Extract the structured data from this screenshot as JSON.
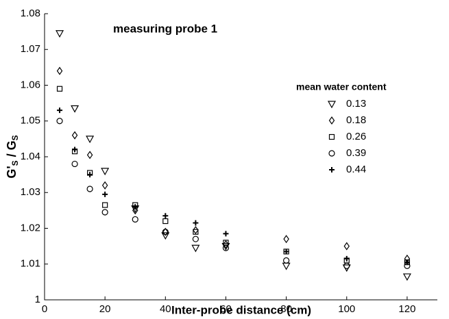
{
  "chart_data": {
    "type": "scatter",
    "annotation": "measuring probe 1",
    "xlabel": "Inter-probe distance (cm)",
    "ylabel": {
      "main1": "G'",
      "sub1": "S",
      "main2": " / G",
      "sub2": "S"
    },
    "legend_title": "mean water content",
    "legend": "upper right",
    "x": [
      5,
      10,
      15,
      20,
      30,
      40,
      50,
      60,
      80,
      100,
      120
    ],
    "series": [
      {
        "name": "0.13",
        "marker": "triangle-down",
        "color": "#000000",
        "values": [
          1.0745,
          1.0535,
          1.045,
          1.036,
          1.0255,
          1.018,
          1.0145,
          1.015,
          1.0095,
          1.009,
          1.0065
        ]
      },
      {
        "name": "0.18",
        "marker": "diamond",
        "color": "#000000",
        "values": [
          1.064,
          1.046,
          1.0405,
          1.032,
          1.025,
          1.019,
          1.0195,
          1.0155,
          1.017,
          1.015,
          1.0115
        ]
      },
      {
        "name": "0.26",
        "marker": "square",
        "color": "#000000",
        "values": [
          1.059,
          1.0415,
          1.0355,
          1.0265,
          1.0265,
          1.022,
          1.019,
          1.016,
          1.0135,
          1.011,
          1.0105
        ]
      },
      {
        "name": "0.39",
        "marker": "circle",
        "color": "#000000",
        "values": [
          1.05,
          1.038,
          1.031,
          1.0245,
          1.0225,
          1.019,
          1.017,
          1.0145,
          1.011,
          1.0095,
          1.0095
        ]
      },
      {
        "name": "0.44",
        "marker": "plus",
        "color": "#000000",
        "values": [
          1.053,
          1.042,
          1.035,
          1.0295,
          1.026,
          1.0235,
          1.0215,
          1.0185,
          1.0135,
          1.0115,
          1.0105
        ]
      }
    ],
    "xlim": [
      0,
      130
    ],
    "xticks": [
      0,
      20,
      40,
      60,
      80,
      100,
      120
    ],
    "ylim": [
      1,
      1.08
    ],
    "yticks": [
      1,
      1.01,
      1.02,
      1.03,
      1.04,
      1.05,
      1.06,
      1.07,
      1.08
    ]
  }
}
